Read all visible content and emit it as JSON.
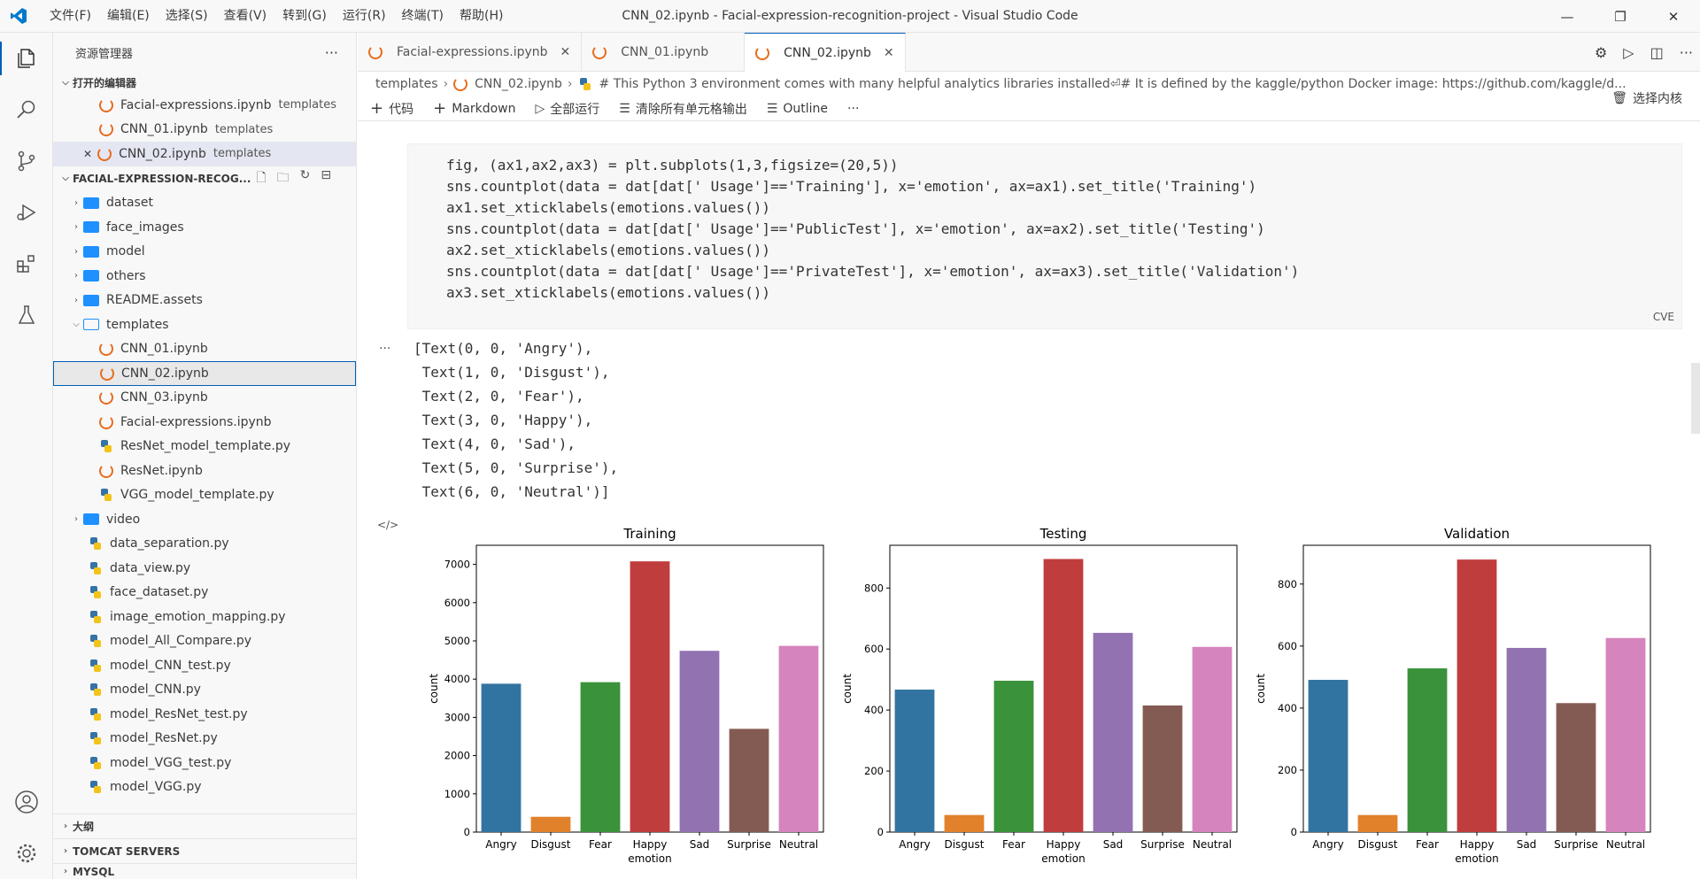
{
  "window": {
    "title": "CNN_02.ipynb - Facial-expression-recognition-project - Visual Studio Code"
  },
  "menu": [
    "文件(F)",
    "编辑(E)",
    "选择(S)",
    "查看(V)",
    "转到(G)",
    "运行(R)",
    "终端(T)",
    "帮助(H)"
  ],
  "sidebar": {
    "title": "资源管理器",
    "open_editors_label": "打开的编辑器",
    "open_editors": [
      {
        "name": "Facial-expressions.ipynb",
        "desc": "templates"
      },
      {
        "name": "CNN_01.ipynb",
        "desc": "templates"
      },
      {
        "name": "CNN_02.ipynb",
        "desc": "templates"
      }
    ],
    "project_label": "FACIAL-EXPRESSION-RECOG...",
    "tree": [
      {
        "name": "dataset",
        "kind": "folder"
      },
      {
        "name": "face_images",
        "kind": "folder"
      },
      {
        "name": "model",
        "kind": "folder"
      },
      {
        "name": "others",
        "kind": "folder"
      },
      {
        "name": "README.assets",
        "kind": "folder"
      },
      {
        "name": "templates",
        "kind": "folder-open"
      },
      {
        "name": "CNN_01.ipynb",
        "kind": "ipynb",
        "indent": 2
      },
      {
        "name": "CNN_02.ipynb",
        "kind": "ipynb",
        "indent": 2
      },
      {
        "name": "CNN_03.ipynb",
        "kind": "ipynb",
        "indent": 2
      },
      {
        "name": "Facial-expressions.ipynb",
        "kind": "ipynb",
        "indent": 2
      },
      {
        "name": "ResNet_model_template.py",
        "kind": "py",
        "indent": 2
      },
      {
        "name": "ResNet.ipynb",
        "kind": "ipynb",
        "indent": 2
      },
      {
        "name": "VGG_model_template.py",
        "kind": "py",
        "indent": 2
      },
      {
        "name": "video",
        "kind": "folder"
      },
      {
        "name": "data_separation.py",
        "kind": "py"
      },
      {
        "name": "data_view.py",
        "kind": "py"
      },
      {
        "name": "face_dataset.py",
        "kind": "py"
      },
      {
        "name": "image_emotion_mapping.py",
        "kind": "py"
      },
      {
        "name": "model_All_Compare.py",
        "kind": "py"
      },
      {
        "name": "model_CNN_test.py",
        "kind": "py"
      },
      {
        "name": "model_CNN.py",
        "kind": "py"
      },
      {
        "name": "model_ResNet_test.py",
        "kind": "py"
      },
      {
        "name": "model_ResNet.py",
        "kind": "py"
      },
      {
        "name": "model_VGG_test.py",
        "kind": "py"
      },
      {
        "name": "model_VGG.py",
        "kind": "py"
      }
    ],
    "outline_label": "大纲",
    "tomcat_label": "TOMCAT SERVERS",
    "mysql_label": "MYSQL"
  },
  "tabs": [
    {
      "label": "Facial-expressions.ipynb"
    },
    {
      "label": "CNN_01.ipynb"
    },
    {
      "label": "CNN_02.ipynb"
    }
  ],
  "breadcrumb": {
    "folder": "templates",
    "file": "CNN_02.ipynb",
    "cell": "# This Python 3 environment comes with many helpful analytics libraries installed⏎# It is defined by the kaggle/python Docker image: https://github.com/kaggle/d..."
  },
  "toolbar": {
    "code": "代码",
    "markdown": "Markdown",
    "run_all": "全部运行",
    "clear": "清除所有单元格输出",
    "outline": "Outline",
    "kernel": "选择内核"
  },
  "cell": {
    "code": "fig, (ax1,ax2,ax3) = plt.subplots(1,3,figsize=(20,5))\nsns.countplot(data = dat[dat[' Usage']=='Training'], x='emotion', ax=ax1).set_title('Training')\nax1.set_xticklabels(emotions.values())\nsns.countplot(data = dat[dat[' Usage']=='PublicTest'], x='emotion', ax=ax2).set_title('Testing')\nax2.set_xticklabels(emotions.values())\nsns.countplot(data = dat[dat[' Usage']=='PrivateTest'], x='emotion', ax=ax3).set_title('Validation')\nax3.set_xticklabels(emotions.values())",
    "lang": "CVE",
    "output": "[Text(0, 0, 'Angry'),\n Text(1, 0, 'Disgust'),\n Text(2, 0, 'Fear'),\n Text(3, 0, 'Happy'),\n Text(4, 0, 'Sad'),\n Text(5, 0, 'Surprise'),\n Text(6, 0, 'Neutral')]"
  },
  "colors": [
    "#3274a1",
    "#e1812c",
    "#3a923a",
    "#c03d3e",
    "#9372b2",
    "#845b53",
    "#d684bd"
  ],
  "chart_data": [
    {
      "type": "bar",
      "title": "Training",
      "xlabel": "emotion",
      "ylabel": "count",
      "categories": [
        "Angry",
        "Disgust",
        "Fear",
        "Happy",
        "Sad",
        "Surprise",
        "Neutral"
      ],
      "values": [
        3880,
        400,
        3920,
        7080,
        4740,
        2700,
        4870
      ],
      "ylim": [
        0,
        7500
      ],
      "yticks": [
        0,
        1000,
        2000,
        3000,
        4000,
        5000,
        6000,
        7000
      ]
    },
    {
      "type": "bar",
      "title": "Testing",
      "xlabel": "emotion",
      "ylabel": "count",
      "categories": [
        "Angry",
        "Disgust",
        "Fear",
        "Happy",
        "Sad",
        "Surprise",
        "Neutral"
      ],
      "values": [
        467,
        56,
        496,
        895,
        653,
        415,
        607
      ],
      "ylim": [
        0,
        940
      ],
      "yticks": [
        0,
        200,
        400,
        600,
        800
      ]
    },
    {
      "type": "bar",
      "title": "Validation",
      "xlabel": "emotion",
      "ylabel": "count",
      "categories": [
        "Angry",
        "Disgust",
        "Fear",
        "Happy",
        "Sad",
        "Surprise",
        "Neutral"
      ],
      "values": [
        491,
        55,
        528,
        879,
        594,
        416,
        626
      ],
      "ylim": [
        0,
        925
      ],
      "yticks": [
        0,
        200,
        400,
        600,
        800
      ]
    }
  ]
}
